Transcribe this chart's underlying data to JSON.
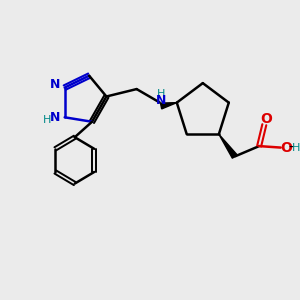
{
  "bg_color": "#ebebeb",
  "bond_color": "#000000",
  "blue_color": "#0000cc",
  "red_color": "#dd0000",
  "teal_color": "#008888",
  "figsize": [
    3.0,
    3.0
  ],
  "dpi": 100,
  "xlim": [
    0,
    10
  ],
  "ylim": [
    0,
    10
  ]
}
